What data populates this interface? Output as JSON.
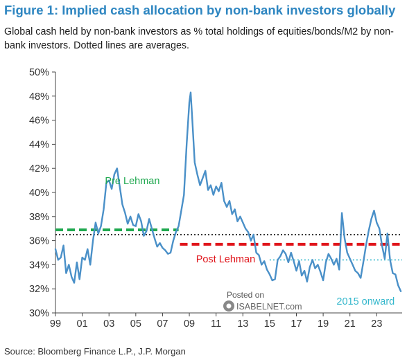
{
  "header": {
    "title": "Figure 1: Implied cash allocation by non-bank investors globally",
    "subtitle": "Global cash held by non-bank investors as % total holdings of equities/bonds/M2 by non-bank investors. Dotted lines are averages."
  },
  "footer": {
    "source": "Source: Bloomberg Finance L.P., J.P. Morgan"
  },
  "watermark": {
    "line1": "Posted on",
    "line2": "ISABELNET.com"
  },
  "colors": {
    "series": "#4a90c8",
    "pre_lehman": "#1fa84f",
    "post_lehman": "#e0151b",
    "since_2015": "#33b7cc",
    "overall_avg": "#111111"
  },
  "chart_data": {
    "type": "line",
    "title": "Figure 1: Implied cash allocation by non-bank investors globally",
    "xlabel": "",
    "ylabel": "",
    "ylim": [
      30,
      50
    ],
    "xlim": [
      1999,
      2024.9
    ],
    "y_ticks": [
      30,
      32,
      34,
      36,
      38,
      40,
      42,
      44,
      46,
      48,
      50
    ],
    "y_tick_labels": [
      "30%",
      "32%",
      "34%",
      "36%",
      "38%",
      "40%",
      "42%",
      "44%",
      "46%",
      "48%",
      "50%"
    ],
    "x_ticks": [
      1999,
      2001,
      2003,
      2005,
      2007,
      2009,
      2011,
      2013,
      2015,
      2017,
      2019,
      2021,
      2023
    ],
    "x_tick_labels": [
      "99",
      "01",
      "03",
      "05",
      "07",
      "09",
      "11",
      "13",
      "15",
      "17",
      "19",
      "21",
      "23"
    ],
    "grid": false,
    "series": [
      {
        "name": "Implied cash allocation",
        "x": [
          1999.0,
          1999.2,
          1999.4,
          1999.6,
          1999.8,
          2000.0,
          2000.2,
          2000.4,
          2000.6,
          2000.8,
          2001.0,
          2001.2,
          2001.4,
          2001.6,
          2001.8,
          2002.0,
          2002.2,
          2002.4,
          2002.6,
          2002.8,
          2003.0,
          2003.2,
          2003.4,
          2003.6,
          2003.8,
          2004.0,
          2004.2,
          2004.4,
          2004.6,
          2004.8,
          2005.0,
          2005.2,
          2005.4,
          2005.6,
          2005.8,
          2006.0,
          2006.2,
          2006.4,
          2006.6,
          2006.8,
          2007.0,
          2007.2,
          2007.4,
          2007.6,
          2007.8,
          2008.0,
          2008.2,
          2008.4,
          2008.6,
          2008.8,
          2009.0,
          2009.1,
          2009.2,
          2009.4,
          2009.6,
          2009.8,
          2010.0,
          2010.2,
          2010.4,
          2010.6,
          2010.8,
          2011.0,
          2011.2,
          2011.4,
          2011.6,
          2011.8,
          2012.0,
          2012.2,
          2012.4,
          2012.6,
          2012.8,
          2013.0,
          2013.2,
          2013.4,
          2013.6,
          2013.8,
          2014.0,
          2014.2,
          2014.4,
          2014.6,
          2014.8,
          2015.0,
          2015.2,
          2015.4,
          2015.6,
          2015.8,
          2016.0,
          2016.2,
          2016.4,
          2016.6,
          2016.8,
          2017.0,
          2017.2,
          2017.4,
          2017.6,
          2017.8,
          2018.0,
          2018.2,
          2018.4,
          2018.6,
          2018.8,
          2019.0,
          2019.2,
          2019.4,
          2019.6,
          2019.8,
          2020.0,
          2020.2,
          2020.4,
          2020.6,
          2020.8,
          2021.0,
          2021.2,
          2021.4,
          2021.6,
          2021.8,
          2022.0,
          2022.2,
          2022.4,
          2022.6,
          2022.8,
          2023.0,
          2023.2,
          2023.4,
          2023.6,
          2023.8,
          2024.0,
          2024.2,
          2024.4,
          2024.6,
          2024.8
        ],
        "values": [
          35.3,
          34.4,
          34.6,
          35.6,
          33.3,
          34.0,
          33.0,
          32.5,
          34.2,
          32.8,
          34.6,
          34.4,
          35.3,
          34.0,
          36.0,
          37.5,
          36.6,
          37.2,
          38.6,
          40.8,
          41.0,
          40.3,
          41.5,
          42.0,
          40.5,
          39.0,
          38.3,
          37.4,
          38.0,
          37.3,
          37.2,
          38.2,
          37.6,
          36.4,
          36.8,
          37.8,
          37.0,
          36.2,
          35.5,
          35.8,
          35.4,
          35.2,
          34.9,
          35.0,
          36.0,
          36.7,
          37.2,
          38.5,
          39.8,
          44.0,
          47.5,
          48.3,
          46.5,
          42.5,
          41.5,
          40.6,
          41.2,
          41.8,
          40.2,
          40.6,
          39.8,
          40.5,
          40.1,
          40.8,
          39.3,
          38.8,
          39.3,
          38.2,
          38.6,
          37.6,
          38.0,
          37.5,
          37.0,
          36.7,
          36.0,
          36.5,
          35.0,
          34.8,
          34.0,
          34.3,
          33.6,
          33.2,
          32.7,
          32.8,
          34.4,
          34.7,
          35.2,
          34.9,
          34.2,
          35.0,
          34.3,
          33.5,
          34.3,
          33.1,
          33.5,
          32.6,
          33.8,
          34.4,
          33.7,
          34.0,
          33.4,
          32.7,
          34.2,
          34.9,
          34.5,
          34.0,
          34.5,
          33.6,
          38.3,
          36.2,
          35.0,
          34.5,
          34.0,
          33.5,
          33.3,
          32.9,
          34.2,
          35.6,
          36.8,
          37.8,
          38.5,
          37.5,
          37.0,
          35.6,
          34.5,
          36.6,
          34.4,
          33.3,
          33.2,
          32.3,
          31.8
        ]
      }
    ],
    "reference_lines": [
      {
        "name": "Pre Lehman average",
        "value": 36.9,
        "x_start": 1999.0,
        "x_end": 2008.2,
        "style": "dashed",
        "color": "#1fa84f"
      },
      {
        "name": "Post Lehman average",
        "value": 35.7,
        "x_start": 2008.3,
        "x_end": 2024.9,
        "style": "dashed",
        "color": "#e0151b"
      },
      {
        "name": "Overall average",
        "value": 36.5,
        "x_start": 1999.0,
        "x_end": 2024.9,
        "style": "dotted",
        "color": "#111111"
      },
      {
        "name": "2015 onward average",
        "value": 34.4,
        "x_start": 2015.0,
        "x_end": 2024.9,
        "style": "dotted",
        "color": "#33b7cc"
      }
    ],
    "annotations": [
      {
        "text": "Pre Lehman",
        "color": "#1fa84f",
        "x": 2002.7,
        "y": 40.7
      },
      {
        "text": "Post Lehman",
        "color": "#e0151b",
        "x": 2009.5,
        "y": 34.2
      },
      {
        "text": "2015 onward",
        "color": "#33b7cc",
        "x": 2020.0,
        "y": 30.7
      }
    ]
  }
}
